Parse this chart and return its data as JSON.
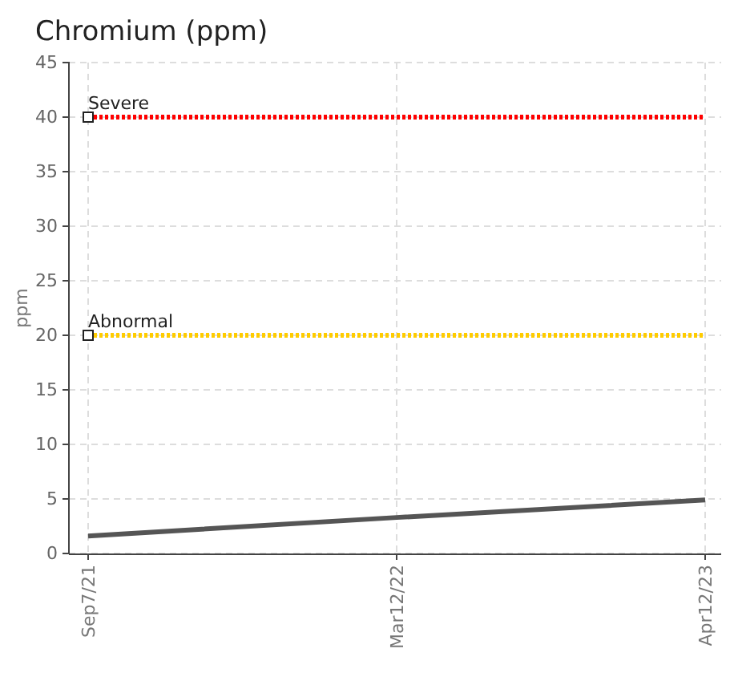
{
  "chart_data": {
    "type": "line",
    "title": "Chromium (ppm)",
    "ylabel": "ppm",
    "categories": [
      "Sep7/21",
      "Mar12/22",
      "Apr12/23"
    ],
    "series": [
      {
        "color": "#555555",
        "values": [
          1.6,
          3.3,
          4.9
        ]
      }
    ],
    "ylim": [
      0,
      45
    ],
    "yticks": [
      0,
      5,
      10,
      15,
      20,
      25,
      30,
      35,
      40,
      45
    ],
    "grid": true,
    "marker": "none",
    "line_style": "solid",
    "ref_lines": [
      {
        "axis": "y",
        "value": 40,
        "label": "Severe",
        "color": "#ff0000",
        "line_style": "dotted"
      },
      {
        "axis": "y",
        "value": 20,
        "label": "Abnormal",
        "color": "#ffcc00",
        "line_style": "dotted"
      }
    ]
  }
}
